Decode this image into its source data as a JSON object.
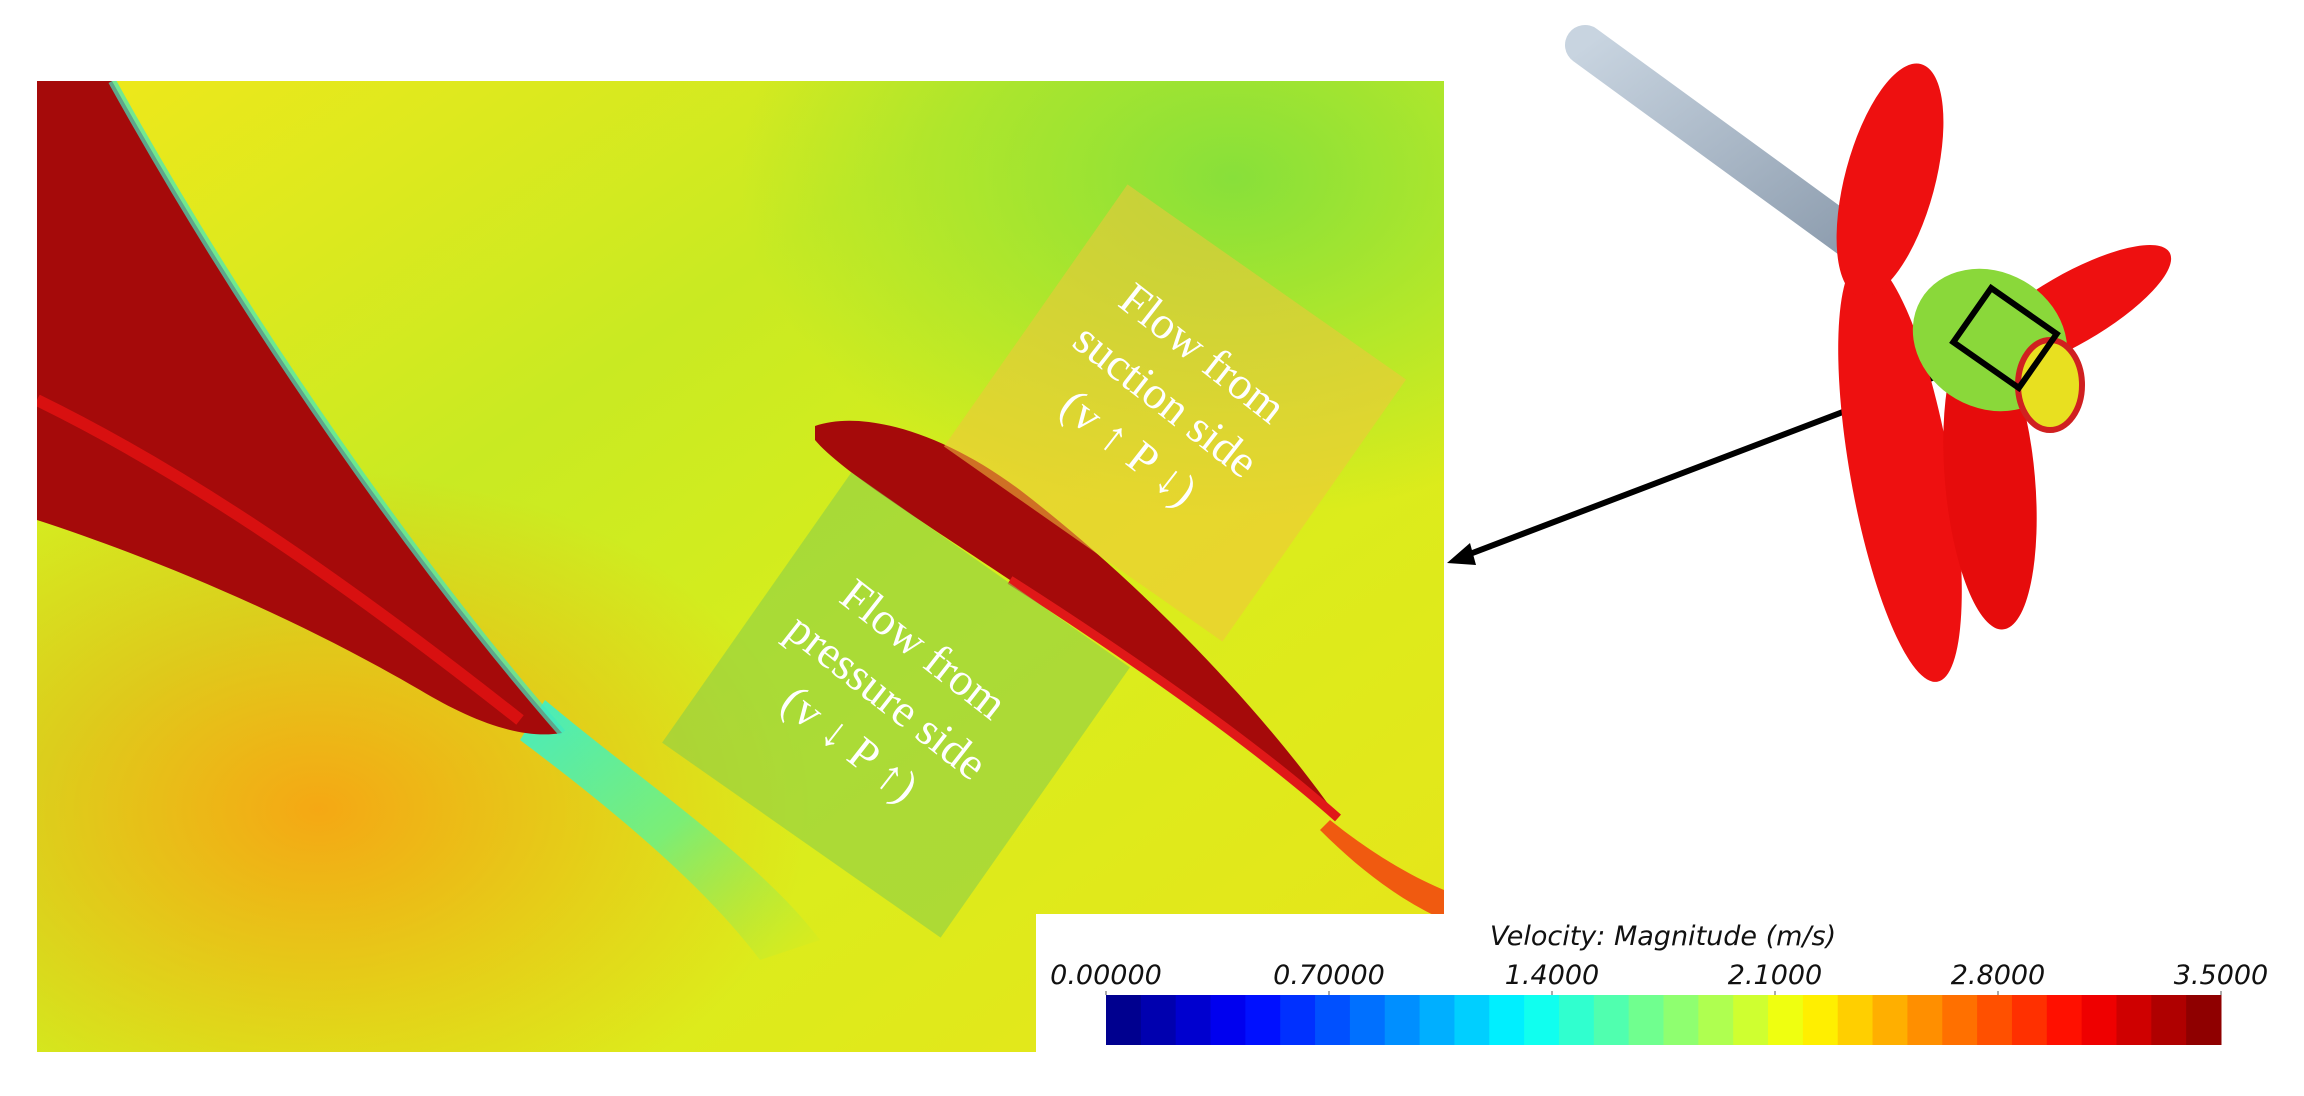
{
  "figure": {
    "annotations": [
      {
        "lines": [
          "Flow from",
          "suction side",
          "(v ↑ P ↓)"
        ]
      },
      {
        "lines": [
          "Flow from",
          "pressure side",
          "(v ↓ P ↑)"
        ]
      }
    ],
    "colorbar": {
      "title": "Velocity: Magnitude (m/s)",
      "range": [
        0,
        3.5
      ],
      "ticks": [
        {
          "value": 0,
          "label": "0.00000"
        },
        {
          "value": 0.7,
          "label": "0.70000"
        },
        {
          "value": 1.4,
          "label": "1.4000"
        },
        {
          "value": 2.1,
          "label": "2.1000"
        },
        {
          "value": 2.8,
          "label": "2.8000"
        },
        {
          "value": 3.5,
          "label": "3.5000"
        }
      ],
      "colormap": "jet"
    }
  }
}
